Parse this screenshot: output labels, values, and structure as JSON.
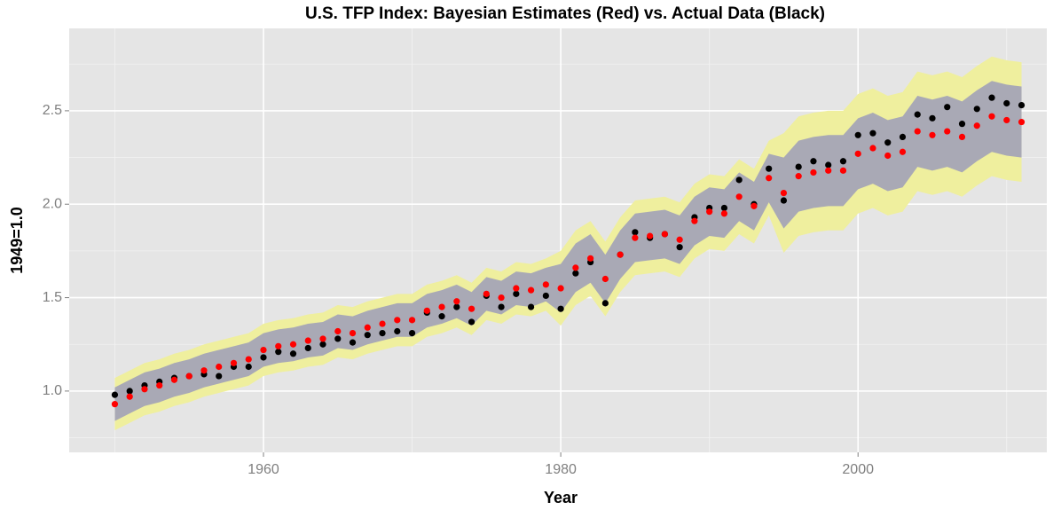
{
  "chart_data": {
    "type": "scatter",
    "title": "U.S. TFP Index: Bayesian Estimates (Red) vs. Actual Data (Black)",
    "x_label": "Year",
    "y_label": "1949=1.0",
    "xlim": [
      1946.93,
      2012.7
    ],
    "ylim": [
      0.672,
      2.941
    ],
    "xticks": [
      1960,
      1980,
      2000
    ],
    "yticks": [
      {
        "value": 1,
        "label": "1.0"
      },
      {
        "value": 1.5,
        "label": "1.5"
      },
      {
        "value": 2,
        "label": "2.0"
      },
      {
        "value": 2.5,
        "label": "2.5"
      }
    ],
    "x_minor_ticks": [
      1950,
      1970,
      1990,
      2010
    ],
    "y_minor_ticks": [
      0.75,
      1.25,
      1.75,
      2.25,
      2.75
    ],
    "grid": true,
    "x": [
      1950,
      1951,
      1952,
      1953,
      1954,
      1955,
      1956,
      1957,
      1958,
      1959,
      1960,
      1961,
      1962,
      1963,
      1964,
      1965,
      1966,
      1967,
      1968,
      1969,
      1970,
      1971,
      1972,
      1973,
      1974,
      1975,
      1976,
      1977,
      1978,
      1979,
      1980,
      1981,
      1982,
      1983,
      1984,
      1985,
      1986,
      1987,
      1988,
      1989,
      1990,
      1991,
      1992,
      1993,
      1994,
      1995,
      1996,
      1997,
      1998,
      1999,
      2000,
      2001,
      2002,
      2003,
      2004,
      2005,
      2006,
      2007,
      2008,
      2009,
      2010,
      2011
    ],
    "bands": [
      {
        "color": "#efef9e",
        "lower": [
          0.79,
          0.83,
          0.87,
          0.89,
          0.92,
          0.94,
          0.97,
          0.99,
          1.01,
          1.03,
          1.08,
          1.1,
          1.11,
          1.13,
          1.14,
          1.18,
          1.17,
          1.2,
          1.22,
          1.24,
          1.24,
          1.29,
          1.31,
          1.34,
          1.3,
          1.38,
          1.36,
          1.41,
          1.4,
          1.43,
          1.35,
          1.46,
          1.51,
          1.4,
          1.53,
          1.62,
          1.63,
          1.64,
          1.61,
          1.71,
          1.76,
          1.75,
          1.84,
          1.79,
          1.94,
          1.74,
          1.83,
          1.85,
          1.86,
          1.86,
          1.95,
          1.98,
          1.94,
          1.96,
          2.07,
          2.05,
          2.07,
          2.04,
          2.1,
          2.15,
          2.13,
          2.12
        ],
        "upper": [
          1.07,
          1.11,
          1.15,
          1.17,
          1.2,
          1.22,
          1.25,
          1.27,
          1.29,
          1.31,
          1.36,
          1.38,
          1.39,
          1.41,
          1.42,
          1.46,
          1.45,
          1.48,
          1.5,
          1.52,
          1.52,
          1.57,
          1.59,
          1.62,
          1.58,
          1.66,
          1.64,
          1.69,
          1.68,
          1.71,
          1.75,
          1.86,
          1.91,
          1.8,
          1.93,
          2.02,
          2.03,
          2.04,
          2.01,
          2.11,
          2.16,
          2.15,
          2.24,
          2.19,
          2.34,
          2.38,
          2.47,
          2.49,
          2.5,
          2.5,
          2.59,
          2.62,
          2.58,
          2.6,
          2.71,
          2.69,
          2.71,
          2.68,
          2.74,
          2.79,
          2.77,
          2.76
        ]
      },
      {
        "color": "#a9a9b5",
        "lower": [
          0.84,
          0.88,
          0.92,
          0.94,
          0.97,
          0.99,
          1.02,
          1.04,
          1.06,
          1.08,
          1.13,
          1.15,
          1.16,
          1.18,
          1.19,
          1.23,
          1.22,
          1.25,
          1.27,
          1.29,
          1.29,
          1.34,
          1.36,
          1.39,
          1.35,
          1.43,
          1.41,
          1.46,
          1.45,
          1.48,
          1.42,
          1.53,
          1.58,
          1.47,
          1.6,
          1.69,
          1.7,
          1.71,
          1.68,
          1.78,
          1.83,
          1.82,
          1.91,
          1.86,
          2.01,
          1.87,
          1.96,
          1.98,
          1.99,
          1.99,
          2.08,
          2.11,
          2.07,
          2.09,
          2.2,
          2.18,
          2.2,
          2.17,
          2.23,
          2.28,
          2.26,
          2.25
        ],
        "upper": [
          1.02,
          1.06,
          1.1,
          1.12,
          1.15,
          1.17,
          1.2,
          1.22,
          1.24,
          1.26,
          1.31,
          1.33,
          1.34,
          1.36,
          1.37,
          1.41,
          1.4,
          1.43,
          1.45,
          1.47,
          1.47,
          1.52,
          1.54,
          1.57,
          1.53,
          1.61,
          1.59,
          1.64,
          1.63,
          1.66,
          1.68,
          1.79,
          1.84,
          1.73,
          1.86,
          1.95,
          1.96,
          1.97,
          1.94,
          2.04,
          2.09,
          2.08,
          2.17,
          2.12,
          2.27,
          2.25,
          2.34,
          2.36,
          2.37,
          2.37,
          2.46,
          2.49,
          2.45,
          2.47,
          2.58,
          2.56,
          2.58,
          2.55,
          2.61,
          2.66,
          2.64,
          2.63
        ]
      }
    ],
    "series": [
      {
        "color": "#000000",
        "values": [
          0.98,
          1.0,
          1.03,
          1.05,
          1.07,
          1.08,
          1.09,
          1.08,
          1.13,
          1.13,
          1.18,
          1.21,
          1.2,
          1.23,
          1.25,
          1.28,
          1.26,
          1.3,
          1.31,
          1.32,
          1.31,
          1.42,
          1.4,
          1.45,
          1.37,
          1.51,
          1.45,
          1.52,
          1.45,
          1.51,
          1.44,
          1.63,
          1.69,
          1.47,
          1.73,
          1.85,
          1.82,
          1.84,
          1.77,
          1.93,
          1.98,
          1.98,
          2.13,
          2.0,
          2.19,
          2.02,
          2.2,
          2.23,
          2.21,
          2.23,
          2.37,
          2.38,
          2.33,
          2.36,
          2.48,
          2.46,
          2.52,
          2.43,
          2.51,
          2.57,
          2.54,
          2.53
        ]
      },
      {
        "color": "#ff0000",
        "values": [
          0.93,
          0.97,
          1.01,
          1.03,
          1.06,
          1.08,
          1.11,
          1.13,
          1.15,
          1.17,
          1.22,
          1.24,
          1.25,
          1.27,
          1.28,
          1.32,
          1.31,
          1.34,
          1.36,
          1.38,
          1.38,
          1.43,
          1.45,
          1.48,
          1.44,
          1.52,
          1.5,
          1.55,
          1.54,
          1.57,
          1.55,
          1.66,
          1.71,
          1.6,
          1.73,
          1.82,
          1.83,
          1.84,
          1.81,
          1.91,
          1.96,
          1.95,
          2.04,
          1.99,
          2.14,
          2.06,
          2.15,
          2.17,
          2.18,
          2.18,
          2.27,
          2.3,
          2.26,
          2.28,
          2.39,
          2.37,
          2.39,
          2.36,
          2.42,
          2.47,
          2.45,
          2.44
        ]
      }
    ]
  }
}
